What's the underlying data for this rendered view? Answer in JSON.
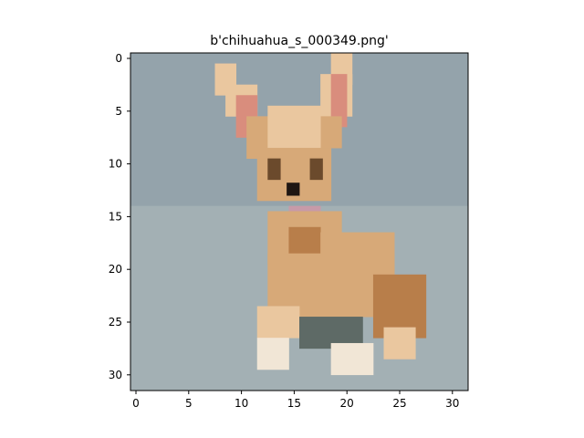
{
  "figure": {
    "title": "b'chihuahua_s_000349.png'"
  },
  "image": {
    "subject": "chihuahua-dog",
    "grid": [
      32,
      32
    ],
    "colors": {
      "background": "#9aa7ac",
      "bg_upper": "#94a3ab",
      "bg_lower": "#a3b0b4",
      "fur": "#d7a978",
      "fur_light": "#eac79f",
      "fur_dark": "#b87e4a",
      "ear_inner": "#d98d7d",
      "eye": "#6b4a2c",
      "nose": "#1f1612",
      "collar": "#c79aa8",
      "paw": "#f1e6d6",
      "shadow": "#5e6a66"
    }
  },
  "axes": {
    "x_ticks": [
      "0",
      "5",
      "10",
      "15",
      "20",
      "25",
      "30"
    ],
    "y_ticks": [
      "0",
      "5",
      "10",
      "15",
      "20",
      "25",
      "30"
    ]
  }
}
